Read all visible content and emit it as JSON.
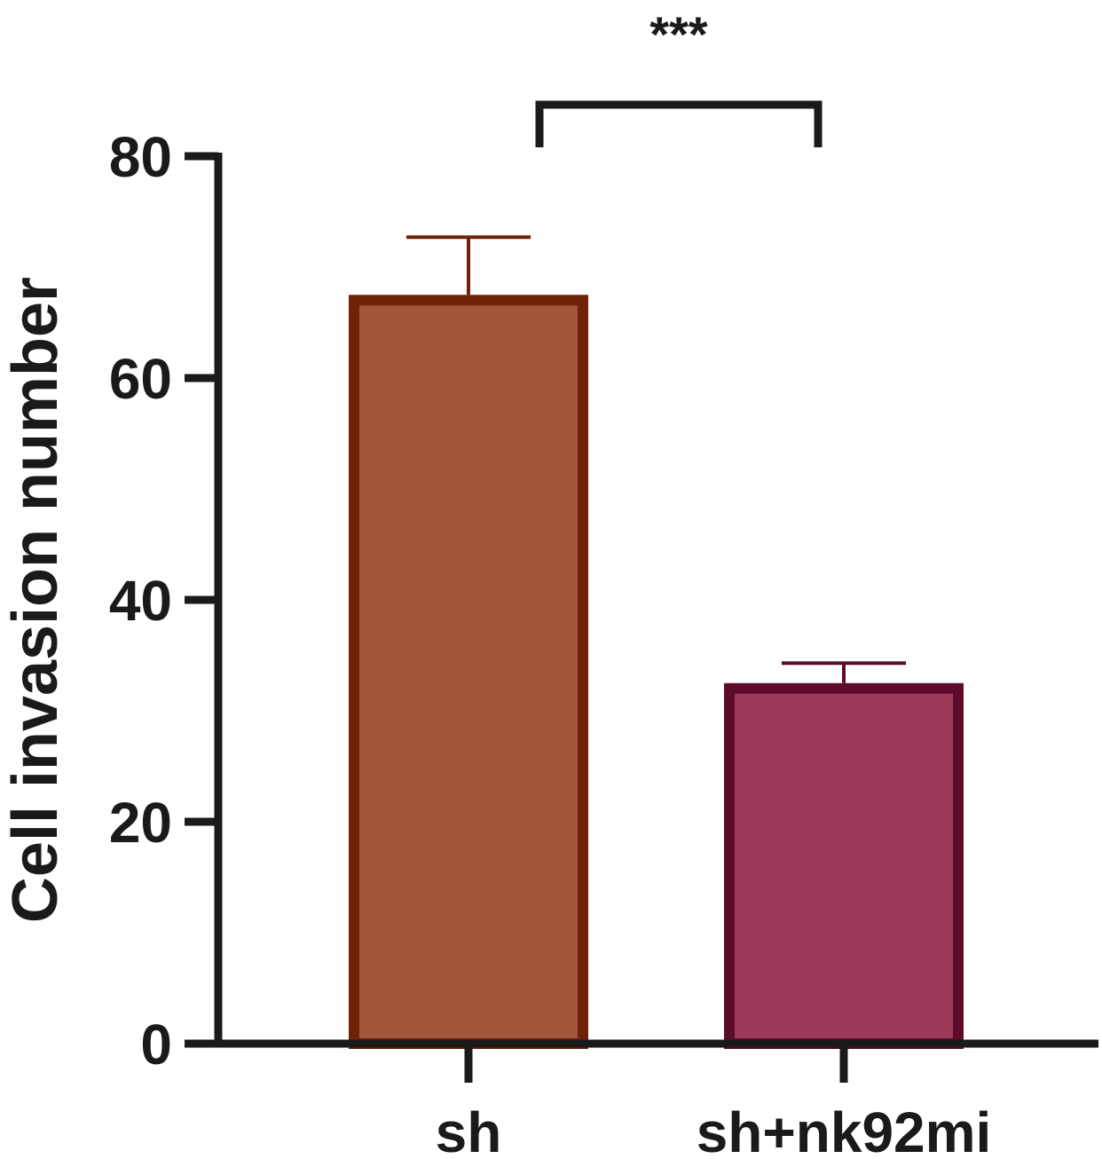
{
  "chart_data": {
    "type": "bar",
    "title": "",
    "xlabel": "",
    "ylabel": "Cell invasion number",
    "ylim": [
      0,
      80
    ],
    "yticks": [
      0,
      20,
      40,
      60,
      80
    ],
    "grid": false,
    "categories": [
      "sh",
      "sh+nk92mi"
    ],
    "values": [
      67.5,
      32.5
    ],
    "errors": [
      5.2,
      1.8
    ],
    "colors": {
      "fill": [
        "#a3553c",
        "#9c3959"
      ],
      "stroke": [
        "#6e2308",
        "#5c0c2a"
      ],
      "axis": "#1a1a1a"
    },
    "significance": {
      "from": 0,
      "to": 1,
      "label": "***"
    }
  }
}
